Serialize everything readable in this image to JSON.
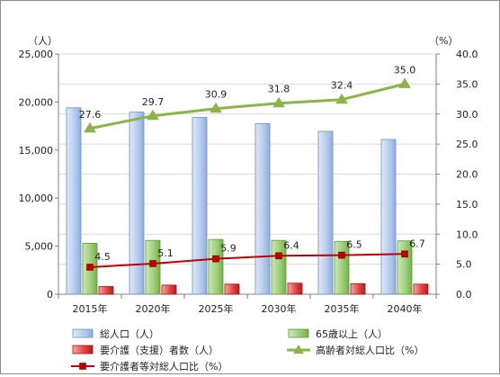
{
  "chart_data": {
    "type": "bar",
    "categories": [
      "2015年",
      "2020年",
      "2025年",
      "2030年",
      "2035年",
      "2040年"
    ],
    "left_unit": "（人）",
    "right_unit": "（%）",
    "left_ticks": [
      "0",
      "5,000",
      "10,000",
      "15,000",
      "20,000",
      "25,000"
    ],
    "right_ticks": [
      "0.0",
      "5.0",
      "10.0",
      "15.0",
      "20.0",
      "25.0",
      "30.0",
      "35.0",
      "40.0"
    ],
    "ylim_left": [
      0,
      25000
    ],
    "ylim_right": [
      0,
      40
    ],
    "grid": true,
    "series": [
      {
        "name": "総人口（人）",
        "type": "bar",
        "axis": "left",
        "values": [
          19400,
          18950,
          18400,
          17750,
          16950,
          16100
        ],
        "color": "#a9c4ea"
      },
      {
        "name": "65歳以上（人）",
        "type": "bar",
        "axis": "left",
        "values": [
          5300,
          5600,
          5700,
          5600,
          5500,
          5550
        ],
        "color": "#8fc46a"
      },
      {
        "name": "要介護（支援）者数（人）",
        "type": "bar",
        "axis": "left",
        "values": [
          800,
          950,
          1050,
          1150,
          1100,
          1050
        ],
        "color": "#e23b3b"
      },
      {
        "name": "高齢者対総人口比（%）",
        "type": "line",
        "axis": "right",
        "values": [
          27.6,
          29.7,
          30.9,
          31.8,
          32.4,
          35.0
        ],
        "labels": [
          "27.6",
          "29.7",
          "30.9",
          "31.8",
          "32.4",
          "35.0"
        ],
        "color": "#8db44a"
      },
      {
        "name": "要介護者等対総人口比（%）",
        "type": "line",
        "axis": "right",
        "values": [
          4.5,
          5.1,
          5.9,
          6.4,
          6.5,
          6.7
        ],
        "labels": [
          "4.5",
          "5.1",
          "5.9",
          "6.4",
          "6.5",
          "6.7"
        ],
        "color": "#c00000"
      }
    ],
    "legend": [
      {
        "label": "総人口（人）",
        "kind": "bar",
        "color": "#a9c4ea"
      },
      {
        "label": "65歳以上（人）",
        "kind": "bar",
        "color": "#8fc46a"
      },
      {
        "label": "要介護（支援）者数（人）",
        "kind": "bar",
        "color": "#e23b3b"
      },
      {
        "label": "高齢者対総人口比（%）",
        "kind": "line-triangle",
        "color": "#8db44a"
      },
      {
        "label": "要介護者等対総人口比（%）",
        "kind": "line-square",
        "color": "#c00000"
      }
    ],
    "legend_position": "bottom"
  }
}
